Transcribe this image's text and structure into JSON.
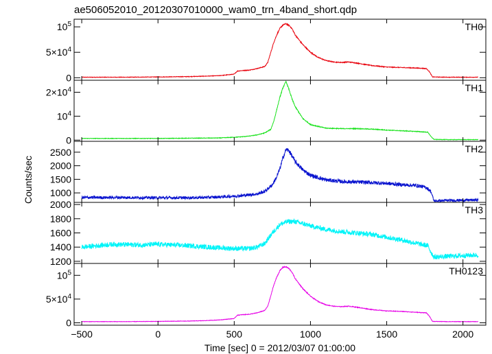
{
  "chart_data": {
    "type": "line",
    "title": "ae506052010_20120307010000_wam0_trn_4band_short.qdp",
    "xlabel": "Time [sec] 0 = 2012/03/07 01:00:00",
    "ylabel": "Counts/sec",
    "xlim": [
      -550,
      2150
    ],
    "xticks": [
      -500,
      0,
      500,
      1000,
      1500,
      2000
    ],
    "xtick_labels": [
      "−500",
      "0",
      "500",
      "1000",
      "1500",
      "2000"
    ],
    "grid": false,
    "panels": [
      {
        "name": "TH0",
        "color": "#e8000b",
        "ylim": [
          -5000,
          115000
        ],
        "yticks": [
          {
            "value": 0,
            "base": "0",
            "exp": ""
          },
          {
            "value": 50000,
            "base": "5×10",
            "exp": "4"
          },
          {
            "value": 100000,
            "base": "10",
            "exp": "5"
          }
        ],
        "noise": 0.01,
        "x": [
          -500,
          -200,
          0,
          200,
          300,
          400,
          500,
          520,
          550,
          600,
          650,
          700,
          720,
          740,
          760,
          780,
          800,
          820,
          840,
          860,
          880,
          900,
          950,
          1000,
          1050,
          1100,
          1150,
          1200,
          1250,
          1300,
          1400,
          1500,
          1600,
          1700,
          1760,
          1780,
          1800,
          1900,
          2000,
          2100
        ],
        "y": [
          1000,
          1000,
          1500,
          2200,
          3000,
          4000,
          7000,
          13000,
          14000,
          15000,
          18000,
          22000,
          30000,
          50000,
          70000,
          85000,
          97000,
          104000,
          106000,
          103000,
          96000,
          84000,
          65000,
          50000,
          40000,
          34000,
          31000,
          30000,
          31000,
          29000,
          24000,
          21000,
          20000,
          19000,
          18000,
          12000,
          1500,
          1000,
          1000,
          1000
        ]
      },
      {
        "name": "TH1",
        "color": "#18e21b",
        "ylim": [
          -500,
          25000
        ],
        "yticks": [
          {
            "value": 0,
            "base": "0",
            "exp": ""
          },
          {
            "value": 10000,
            "base": "10",
            "exp": "4"
          },
          {
            "value": 20000,
            "base": "2×10",
            "exp": "4"
          }
        ],
        "noise": 0.01,
        "x": [
          -500,
          -200,
          0,
          200,
          400,
          500,
          550,
          600,
          650,
          700,
          740,
          760,
          780,
          800,
          820,
          840,
          860,
          880,
          900,
          950,
          1000,
          1100,
          1200,
          1300,
          1400,
          1500,
          1600,
          1700,
          1770,
          1790,
          1810,
          1900,
          2000,
          2100
        ],
        "y": [
          700,
          700,
          700,
          800,
          900,
          1200,
          1400,
          1700,
          2200,
          3000,
          4500,
          8000,
          13000,
          18000,
          22000,
          24500,
          21000,
          17000,
          14000,
          9000,
          6500,
          5000,
          4800,
          4800,
          4600,
          4200,
          3900,
          3600,
          3300,
          1500,
          300,
          200,
          200,
          200
        ]
      },
      {
        "name": "TH2",
        "color": "#0a14cf",
        "ylim": [
          650,
          2900
        ],
        "yticks": [
          {
            "value": 1000,
            "base": "1000",
            "exp": ""
          },
          {
            "value": 1500,
            "base": "1500",
            "exp": ""
          },
          {
            "value": 2000,
            "base": "2000",
            "exp": ""
          },
          {
            "value": 2500,
            "base": "2500",
            "exp": ""
          }
        ],
        "noise": 0.035,
        "x": [
          -500,
          -200,
          0,
          200,
          300,
          400,
          500,
          550,
          600,
          650,
          700,
          750,
          780,
          800,
          820,
          840,
          860,
          880,
          900,
          950,
          1000,
          1100,
          1200,
          1300,
          1400,
          1500,
          1600,
          1700,
          1760,
          1790,
          1810,
          1900,
          2000,
          2100
        ],
        "y": [
          830,
          830,
          820,
          820,
          830,
          850,
          880,
          900,
          930,
          960,
          1050,
          1300,
          1600,
          1900,
          2300,
          2600,
          2550,
          2350,
          2150,
          1850,
          1650,
          1480,
          1420,
          1400,
          1380,
          1350,
          1300,
          1270,
          1200,
          1050,
          700,
          720,
          730,
          740
        ]
      },
      {
        "name": "TH3",
        "color": "#00f4f8",
        "ylim": [
          1170,
          2030
        ],
        "yticks": [
          {
            "value": 1200,
            "base": "1200",
            "exp": ""
          },
          {
            "value": 1400,
            "base": "1400",
            "exp": ""
          },
          {
            "value": 1600,
            "base": "1600",
            "exp": ""
          },
          {
            "value": 1800,
            "base": "1800",
            "exp": ""
          },
          {
            "value": 2000,
            "base": "2000",
            "exp": ""
          }
        ],
        "noise": 0.04,
        "x": [
          -500,
          -300,
          -100,
          0,
          200,
          400,
          500,
          600,
          650,
          700,
          750,
          800,
          850,
          900,
          950,
          1000,
          1100,
          1200,
          1300,
          1400,
          1500,
          1600,
          1700,
          1770,
          1790,
          1810,
          1900,
          2000,
          2100
        ],
        "y": [
          1400,
          1440,
          1430,
          1440,
          1420,
          1390,
          1380,
          1380,
          1400,
          1450,
          1600,
          1720,
          1760,
          1760,
          1730,
          1700,
          1650,
          1620,
          1600,
          1580,
          1540,
          1500,
          1450,
          1420,
          1330,
          1260,
          1270,
          1280,
          1290
        ]
      },
      {
        "name": "TH0123",
        "color": "#e600e6",
        "ylim": [
          -5000,
          125000
        ],
        "yticks": [
          {
            "value": 0,
            "base": "0",
            "exp": ""
          },
          {
            "value": 50000,
            "base": "5×10",
            "exp": "4"
          },
          {
            "value": 100000,
            "base": "10",
            "exp": "5"
          }
        ],
        "noise": 0.008,
        "x": [
          -500,
          -200,
          0,
          200,
          300,
          400,
          500,
          520,
          550,
          600,
          650,
          700,
          720,
          740,
          760,
          780,
          800,
          820,
          840,
          860,
          880,
          900,
          950,
          1000,
          1050,
          1100,
          1150,
          1200,
          1250,
          1300,
          1400,
          1500,
          1600,
          1700,
          1760,
          1780,
          1800,
          1900,
          2000,
          2100
        ],
        "y": [
          2500,
          2500,
          3000,
          3700,
          4500,
          6000,
          9000,
          16000,
          17000,
          18000,
          21000,
          26000,
          35000,
          57000,
          80000,
          97000,
          110000,
          117000,
          118000,
          114000,
          106000,
          93000,
          72000,
          56000,
          45000,
          38000,
          35000,
          34000,
          35000,
          33000,
          28000,
          25000,
          24000,
          22000,
          21000,
          14000,
          3000,
          2500,
          2500,
          2500
        ]
      }
    ]
  }
}
